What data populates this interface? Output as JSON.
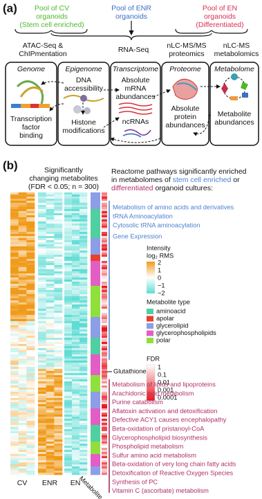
{
  "panel_a": {
    "label": "(a)",
    "pools": [
      {
        "lines": [
          "Pool of CV",
          "organoids",
          "(Stem cell enriched)"
        ]
      },
      {
        "lines": [
          "Pool of ENR",
          "organoids"
        ]
      },
      {
        "lines": [
          "Pool of EN",
          "organoids",
          "(Differentiated)"
        ]
      }
    ],
    "methods": [
      {
        "lines": [
          "ATAC-Seq &",
          "ChIPmentation"
        ]
      },
      {
        "lines": [
          "RNA-Seq"
        ]
      },
      {
        "lines": [
          "nLC-MS/MS",
          "proteomics"
        ]
      },
      {
        "lines": [
          "nLC-MS",
          "metabolomics"
        ]
      }
    ],
    "omics": [
      {
        "title": "Genome",
        "lines": [
          "Transcription",
          "factor",
          "binding"
        ]
      },
      {
        "title": "Epigenome",
        "lines": [
          "DNA",
          "accessibility",
          "Histone",
          "modifications"
        ]
      },
      {
        "title": "Transcriptome",
        "lines": [
          "Absolute",
          "mRNA",
          "abundances",
          "ncRNAs"
        ]
      },
      {
        "title": "Proteome",
        "lines": [
          "Absolute",
          "protein",
          "abundances"
        ]
      },
      {
        "title": "Metabolome",
        "lines": [
          "Metabolite",
          "abundances"
        ]
      }
    ]
  },
  "panel_b": {
    "label": "(b)",
    "heatmap_title": [
      "Significantly",
      "changing metabolites",
      "(FDR < 0.05; n = 300)"
    ],
    "columns": [
      "CV",
      "ENR",
      "EN",
      "Metabolite"
    ],
    "reactome_heading": [
      "Reactome pathways significantly enriched",
      "in metabolomes of",
      "stem cell enriched",
      "or",
      "differentiated",
      "organoid cultures:"
    ],
    "stem_pathways": [
      "Metabolism of amino acids and derivatives",
      "tRNA Aminoacylation",
      "Cytosolic tRNA aminoacylation",
      "Gene Expression"
    ],
    "glutathione": "Glutathione",
    "diff_pathways": [
      "Metabolism of lipids and lipoproteins",
      "Arachidonic acid metabolism",
      "Purine catabolism",
      "Aflatoxin activation and detoxification",
      "Defective ACY1 causes encephalopathy",
      "Beta-oxidation of pristanoyl-CoA",
      "Glycerophospholipid biosynthesis",
      "Phospholipid metabolism",
      "Sulfur amino acid metabolism",
      "Beta-oxidation of very long chain fatty acids",
      "Detoxification of Reactive Oxygen Species",
      "Synthesis of PC",
      "Vitamin C (ascorbate) metabolism"
    ],
    "intensity_legend": {
      "title": "Intensity",
      "subtitle": "log₂ RMS",
      "labels": [
        "2",
        "1",
        "0",
        "−1",
        "−2"
      ]
    },
    "type_legend": {
      "title": "Metabolite type",
      "items": [
        {
          "name": "aminoacid",
          "color": "#4fd0a0"
        },
        {
          "name": "apolar",
          "color": "#e8402a"
        },
        {
          "name": "glycerolipid",
          "color": "#8c9ee6"
        },
        {
          "name": "glycerophospholipids",
          "color": "#e25ec4"
        },
        {
          "name": "polar",
          "color": "#8fe03c"
        }
      ]
    },
    "fdr_legend": {
      "title": "FDR",
      "labels": [
        "1",
        "0.1",
        "0.01",
        "0.001",
        "0.0001"
      ]
    }
  }
}
